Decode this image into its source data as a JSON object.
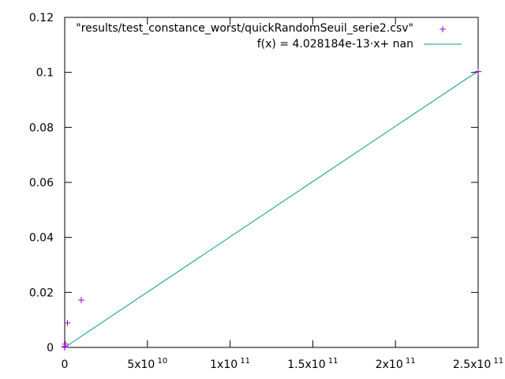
{
  "chart_data": {
    "type": "scatter",
    "xlim": [
      0,
      250000000000
    ],
    "ylim": [
      0,
      0.12
    ],
    "yticks": [
      "0",
      "0.02",
      "0.04",
      "0.06",
      "0.08",
      "0.1",
      "0.12"
    ],
    "ytick_values": [
      0,
      0.02,
      0.04,
      0.06,
      0.08,
      0.1,
      0.12
    ],
    "xticks": [
      {
        "value": 0,
        "label": "0",
        "exp": ""
      },
      {
        "value": 50000000000,
        "label": "5x10",
        "exp": "10"
      },
      {
        "value": 100000000000,
        "label": "1x10",
        "exp": "11"
      },
      {
        "value": 150000000000,
        "label": "1.5x10",
        "exp": "11"
      },
      {
        "value": 200000000000,
        "label": "2x10",
        "exp": "11"
      },
      {
        "value": 250000000000,
        "label": "2.5x10",
        "exp": "11"
      }
    ],
    "legend_position": "top-right",
    "grid": false,
    "series": [
      {
        "name": "\"results/test_constance_worst/quickRandomSeuil_serie2.csv\"",
        "kind": "points",
        "marker": "+",
        "color": "#9400d3",
        "points": [
          {
            "x": 0,
            "y": 0
          },
          {
            "x": 100000000,
            "y": 0.0004
          },
          {
            "x": 400000000,
            "y": 0.0012
          },
          {
            "x": 1600000000,
            "y": 0.0089
          },
          {
            "x": 10000000000,
            "y": 0.0172
          },
          {
            "x": 250000000000,
            "y": 0.1003
          }
        ]
      },
      {
        "name": "f(x) = 4.028184e-13·x+ nan",
        "kind": "line",
        "color": "#009e73",
        "points": [
          {
            "x": 0,
            "y": 0
          },
          {
            "x": 245000000000,
            "y": 0.0985
          },
          {
            "x": 250000000000,
            "y": 0.1003
          }
        ]
      }
    ]
  }
}
